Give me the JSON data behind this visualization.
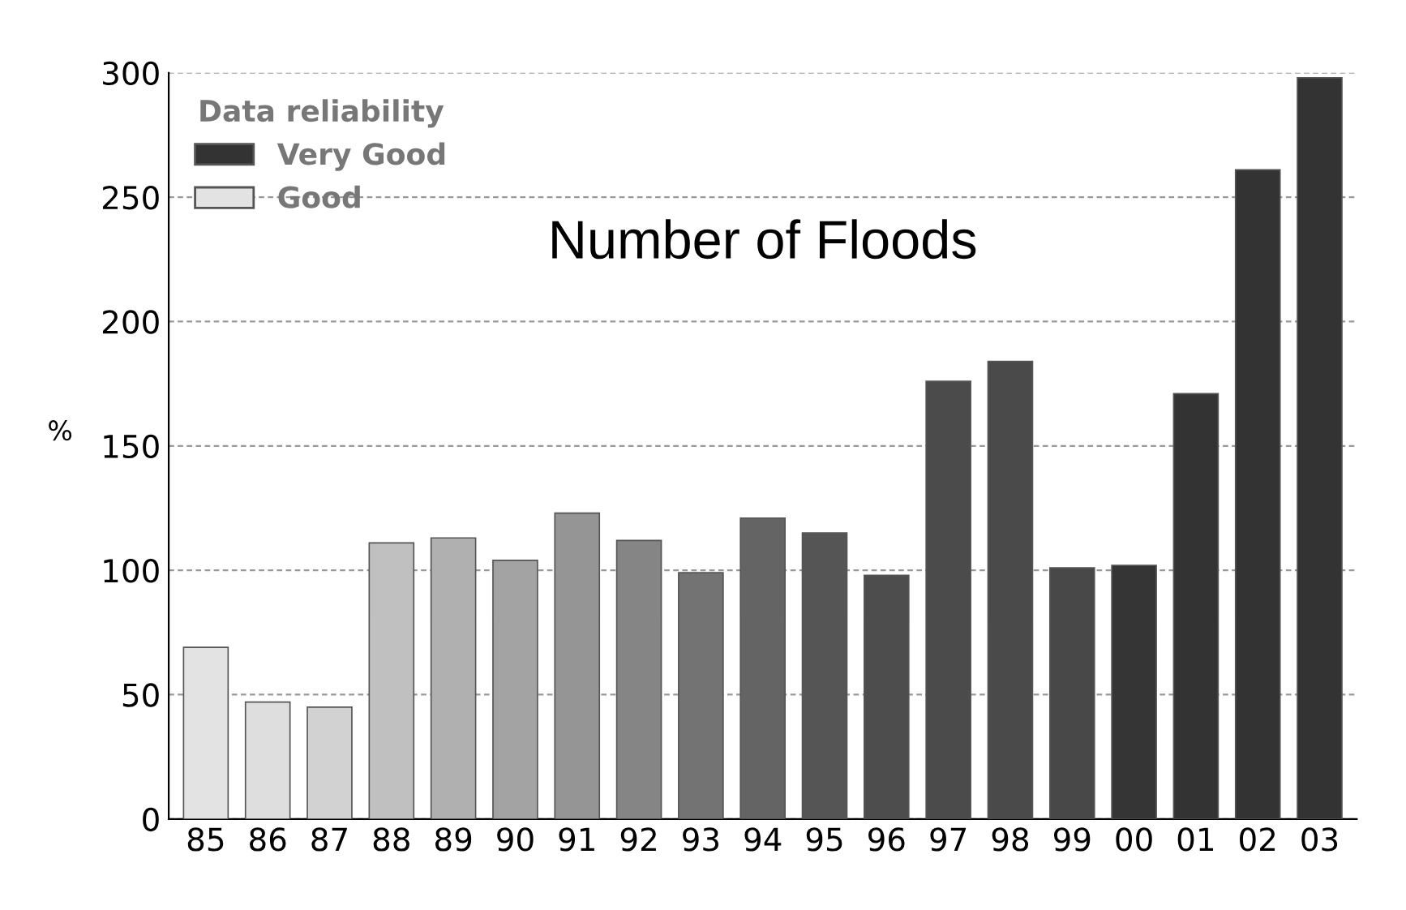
{
  "chart_data": {
    "type": "bar",
    "title": "Number of Floods",
    "ylabel": "%",
    "legend_title": "Data reliability",
    "categories": [
      "85",
      "86",
      "87",
      "88",
      "89",
      "90",
      "91",
      "92",
      "93",
      "94",
      "95",
      "96",
      "97",
      "98",
      "99",
      "00",
      "01",
      "02",
      "03"
    ],
    "series": [
      {
        "name": "Very Good",
        "color": "#333333",
        "values": [
          null,
          null,
          null,
          null,
          null,
          null,
          null,
          null,
          null,
          121,
          115,
          98,
          176,
          184,
          101,
          102,
          171,
          261,
          298
        ],
        "colors": [
          null,
          null,
          null,
          null,
          null,
          null,
          null,
          null,
          null,
          "#646464",
          "#555555",
          "#4d4d4d",
          "#4b4b4b",
          "#4a4a4a",
          "#484848",
          "#353535",
          "#333333",
          "#333333",
          "#333333"
        ]
      },
      {
        "name": "Good",
        "color": "#e3e3e3",
        "values": [
          69,
          47,
          45,
          111,
          113,
          104,
          123,
          112,
          99,
          null,
          null,
          null,
          null,
          null,
          null,
          null,
          null,
          null,
          null
        ],
        "colors": [
          "#e3e3e3",
          "#dedede",
          "#d2d2d2",
          "#c0c0c0",
          "#b0b0b0",
          "#a3a3a3",
          "#959595",
          "#858585",
          "#737373",
          null,
          null,
          null,
          null,
          null,
          null,
          null,
          null,
          null,
          null
        ]
      }
    ],
    "ylim": [
      0,
      300
    ],
    "yticks": [
      0,
      50,
      100,
      150,
      200,
      250,
      300
    ],
    "grid": "y",
    "legend": "top left"
  }
}
